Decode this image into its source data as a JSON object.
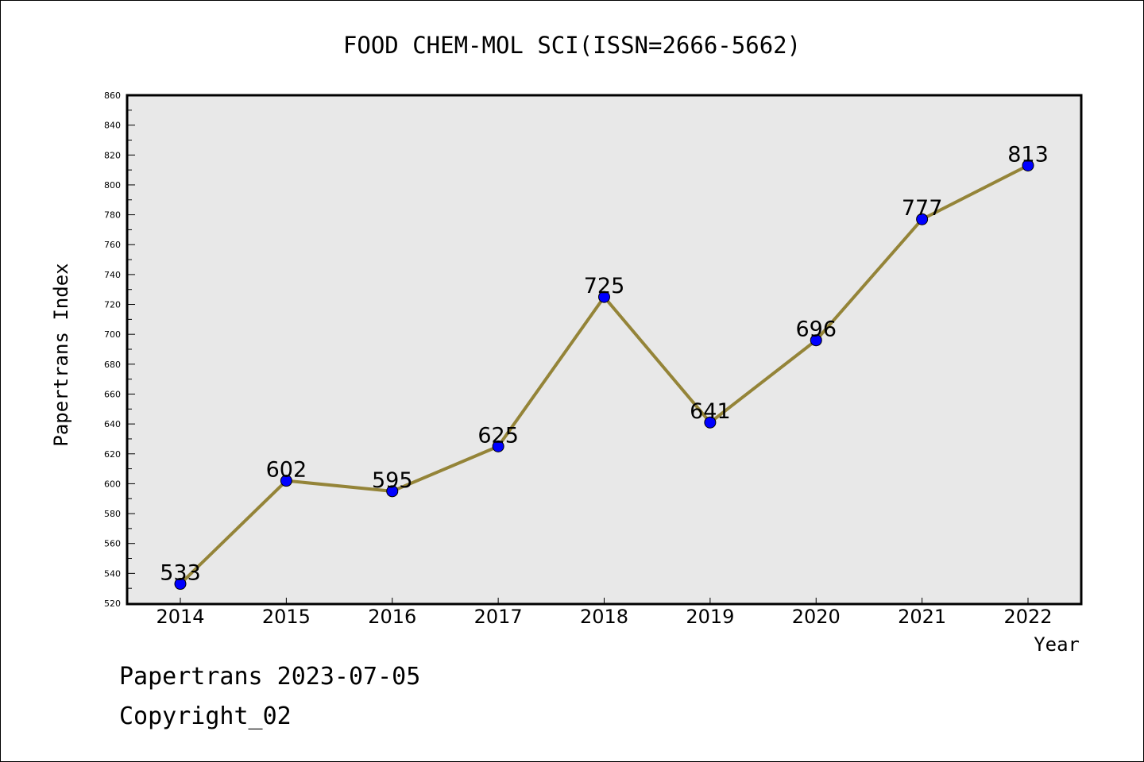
{
  "chart_data": {
    "type": "line",
    "title": "FOOD CHEM-MOL SCI(ISSN=2666-5662)",
    "xlabel": "Year",
    "ylabel": "Papertrans Index",
    "categories": [
      "2014",
      "2015",
      "2016",
      "2017",
      "2018",
      "2019",
      "2020",
      "2021",
      "2022"
    ],
    "series": [
      {
        "values": [
          533,
          602,
          595,
          625,
          725,
          641,
          696,
          777,
          813
        ]
      }
    ],
    "data_labels": [
      "533",
      "602",
      "595",
      "625",
      "725",
      "641",
      "696",
      "777",
      "813"
    ],
    "ylim": [
      520,
      860
    ],
    "yticks": [
      520,
      540,
      560,
      580,
      600,
      620,
      640,
      660,
      680,
      700,
      720,
      740,
      760,
      780,
      800,
      820,
      840,
      860
    ],
    "grid": false,
    "legend": "none",
    "colors": {
      "line": "#948438",
      "marker": "#0000ff",
      "plot_background": "#e8e8e8"
    }
  },
  "footer": {
    "date_line": "Papertrans 2023-07-05",
    "copyright_line": "Copyright_02"
  }
}
